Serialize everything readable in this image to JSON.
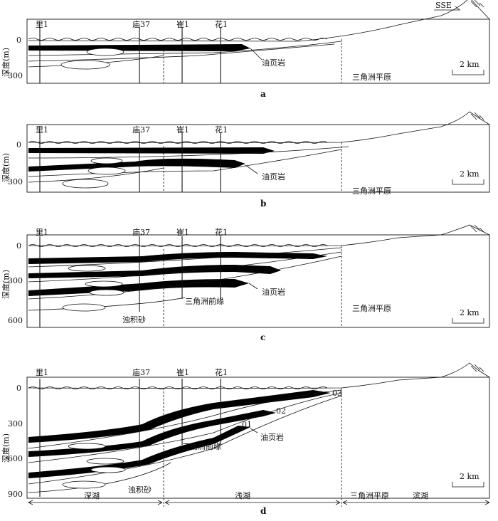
{
  "direction_label": "SSE",
  "depth_axis_label": "深度(m)",
  "scale_bar_label": "2 km",
  "wells": [
    "里1",
    "庙37",
    "崔1",
    "花1"
  ],
  "panels": [
    {
      "label": "a",
      "depth_ticks": [
        "0",
        "300"
      ],
      "facies_labels": [
        "三角洲平原"
      ],
      "shale_labels": [
        "油页岩"
      ]
    },
    {
      "label": "b",
      "depth_ticks": [
        "0",
        "300"
      ],
      "facies_labels": [
        "三角洲平原"
      ],
      "shale_labels": [
        "油页岩"
      ]
    },
    {
      "label": "c",
      "depth_ticks": [
        "0",
        "300",
        "600"
      ],
      "facies_labels": [
        "浊积砂",
        "三角洲前缘",
        "三角洲平原"
      ],
      "shale_labels": [
        "油页岩"
      ]
    },
    {
      "label": "d",
      "depth_ticks": [
        "0",
        "300",
        "600",
        "900"
      ],
      "facies_labels": [
        "浊积砂",
        "三角洲前缘"
      ],
      "shale_labels": [
        "油页岩",
        "01",
        "02",
        "03"
      ],
      "zones": [
        "深湖",
        "浅湖",
        "三角洲平原",
        "滨湖"
      ]
    }
  ]
}
